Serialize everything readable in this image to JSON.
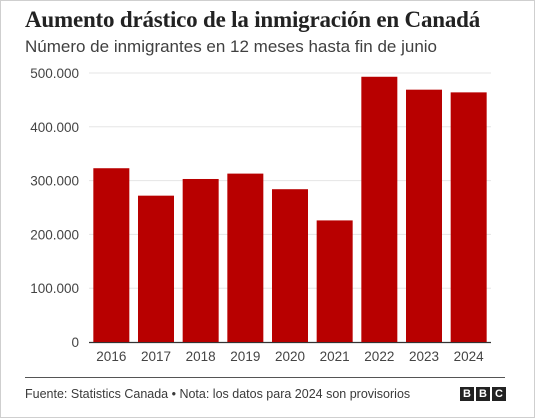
{
  "title": "Aumento drástico de la inmigración en Canadá",
  "subtitle": "Número de inmigrantes en 12 meses hasta fin de junio",
  "footer": {
    "source": "Fuente: Statistics Canada • Nota: los datos para 2024 son provisorios",
    "brand_letters": [
      "B",
      "B",
      "C"
    ]
  },
  "colors": {
    "bar": "#b80000",
    "grid": "#e5e5e5",
    "axis": "#333333"
  },
  "chart_data": {
    "type": "bar",
    "title": "Aumento drástico de la inmigración en Canadá",
    "subtitle": "Número de inmigrantes en 12 meses hasta fin de junio",
    "categories": [
      "2016",
      "2017",
      "2018",
      "2019",
      "2020",
      "2021",
      "2022",
      "2023",
      "2024"
    ],
    "values": [
      323000,
      272000,
      303000,
      313000,
      284000,
      226000,
      493000,
      469000,
      464000
    ],
    "ylim": [
      0,
      500000
    ],
    "yticks": [
      0,
      100000,
      200000,
      300000,
      400000,
      500000
    ],
    "ytick_labels": [
      "0",
      "100.000",
      "200.000",
      "300.000",
      "400.000",
      "500.000"
    ],
    "grid": true,
    "legend": "none"
  }
}
